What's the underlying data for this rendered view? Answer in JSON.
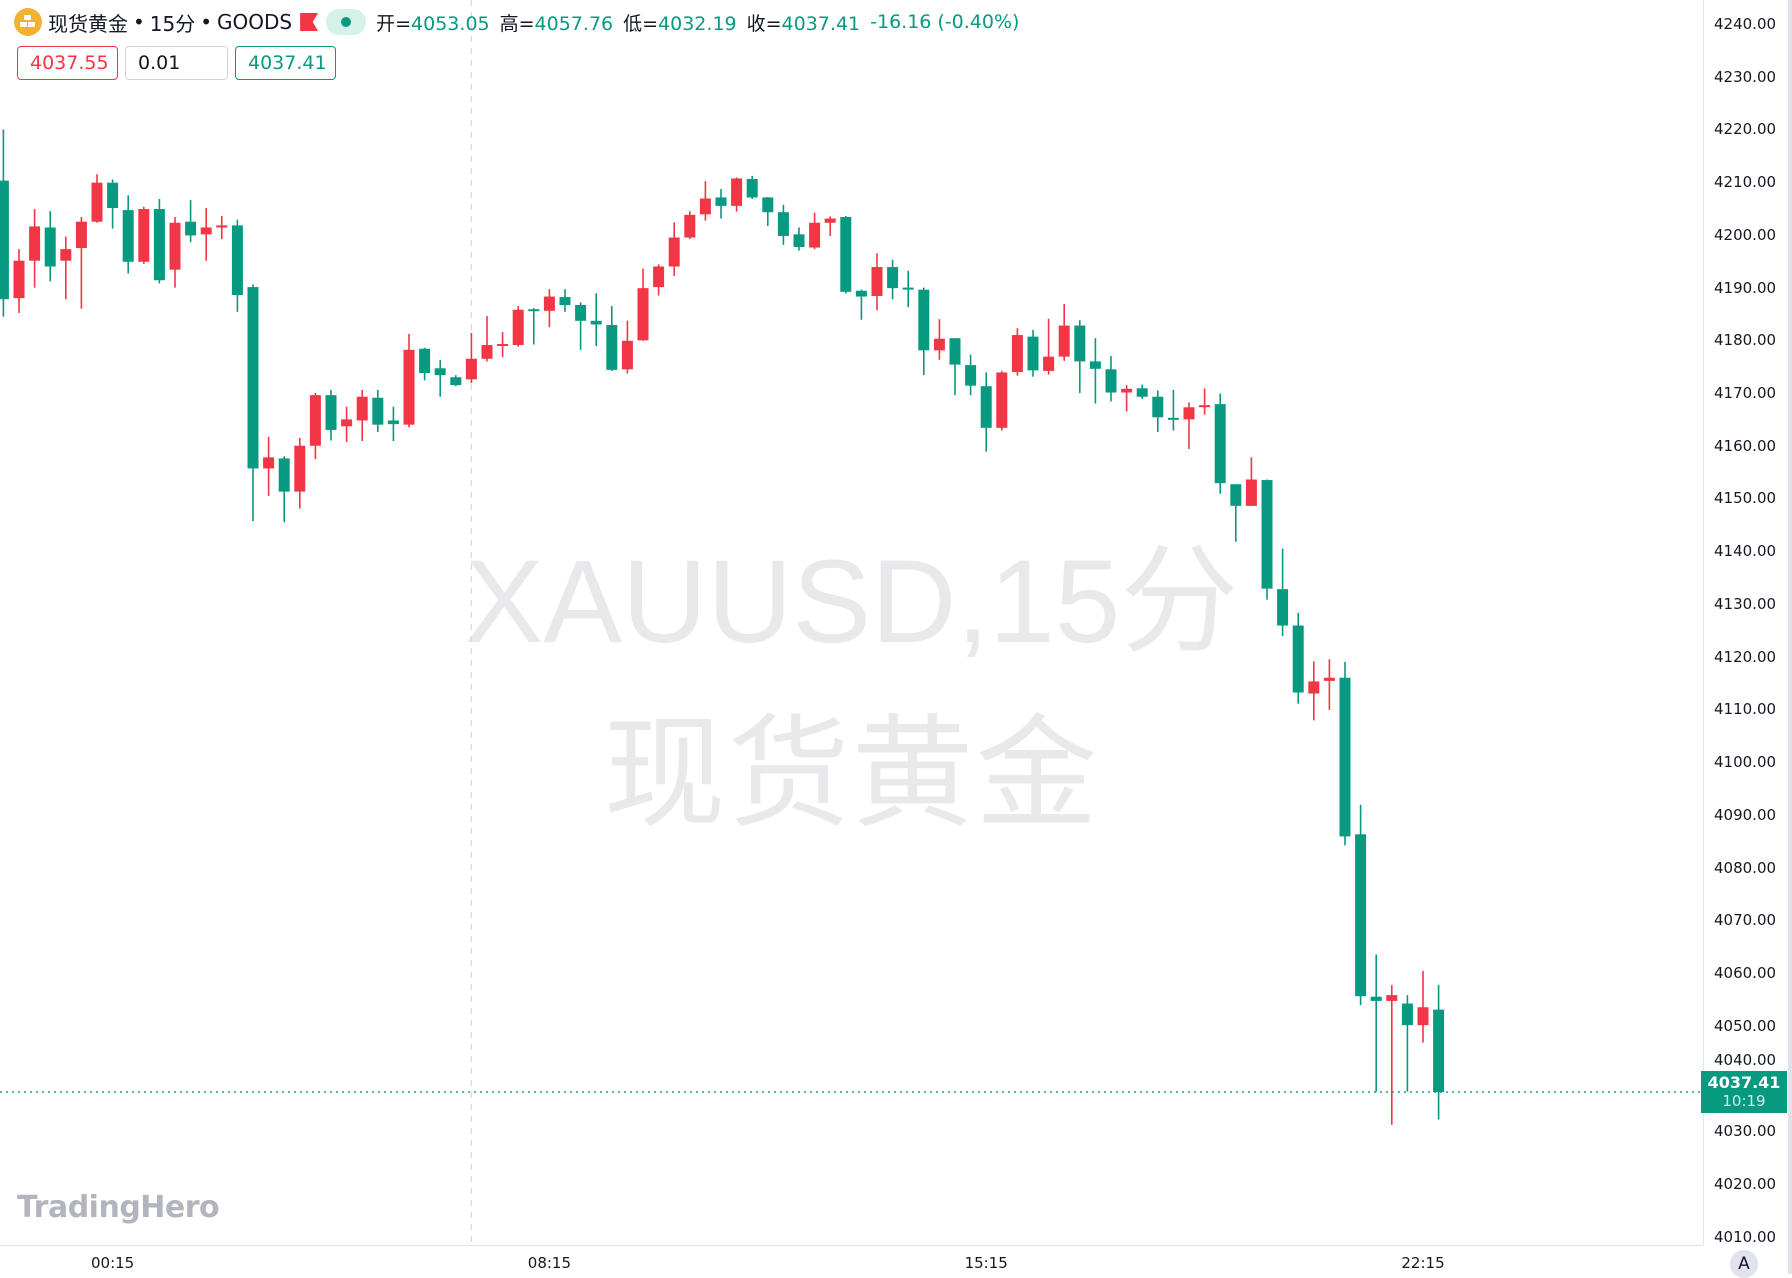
{
  "legend": {
    "symbol_name": "现货黄金",
    "interval": "15分",
    "exchange": "GOODS",
    "separator": "•",
    "open_label": "开=",
    "open": "4053.05",
    "high_label": "高=",
    "high": "4057.76",
    "low_label": "低=",
    "low": "4032.19",
    "close_label": "收=",
    "close": "4037.41",
    "change": "-16.16 (-0.40%)",
    "icons": {
      "symbol": "gold-bars-icon",
      "flag": "flag-icon",
      "status": "market-open-dot-icon"
    }
  },
  "trade_boxes": {
    "sell_price": "4037.55",
    "quantity": "0.01",
    "buy_price": "4037.41"
  },
  "watermark": {
    "line1": "XAUUSD,15分",
    "line2": "现货黄金"
  },
  "logo": "TradingHero",
  "price_axis": {
    "last_price": "4037.41",
    "countdown": "10:19",
    "auto_scale_button": "A"
  },
  "colors": {
    "up": "#f23645",
    "down": "#089981",
    "accent": "#089981"
  },
  "chart_data": {
    "type": "candlestick",
    "ylim": [
      4010,
      4240
    ],
    "y_ticks": [
      "4240.00",
      "4230.00",
      "4220.00",
      "4210.00",
      "4200.00",
      "4190.00",
      "4180.00",
      "4170.00",
      "4160.00",
      "4150.00",
      "4140.00",
      "4130.00",
      "4120.00",
      "4110.00",
      "4100.00",
      "4090.00",
      "4080.00",
      "4070.00",
      "4060.00",
      "4050.00",
      "4040.00",
      "4030.00",
      "4020.00",
      "4010.00"
    ],
    "x_ticks": [
      {
        "label": "00:15",
        "bar": 7
      },
      {
        "label": "08:15",
        "bar": 35
      },
      {
        "label": "15:15",
        "bar": 63
      },
      {
        "label": "22:15",
        "bar": 91
      }
    ],
    "session_break_bar": 30,
    "last_price": 4037.41,
    "ohlc": [
      [
        4210.3,
        4220,
        4184.5,
        4187.8
      ],
      [
        4188,
        4197.3,
        4185.2,
        4195.1
      ],
      [
        4195.1,
        4204.9,
        4190,
        4201.6
      ],
      [
        4201.4,
        4204.5,
        4191.2,
        4194
      ],
      [
        4195.1,
        4199.7,
        4187.8,
        4197.3
      ],
      [
        4197.5,
        4203.4,
        4186,
        4202.5
      ],
      [
        4202.5,
        4211.5,
        4202.3,
        4209.9
      ],
      [
        4209.9,
        4210.5,
        4201.2,
        4205.1
      ],
      [
        4204.7,
        4207.5,
        4192.7,
        4194.9
      ],
      [
        4194.9,
        4205.3,
        4194.5,
        4204.9
      ],
      [
        4204.9,
        4206.8,
        4190.8,
        4191.4
      ],
      [
        4193.4,
        4203.4,
        4190,
        4202.3
      ],
      [
        4202.5,
        4206.6,
        4198.6,
        4199.9
      ],
      [
        4200.1,
        4205.1,
        4195.1,
        4201.4
      ],
      [
        4201.4,
        4203.6,
        4199.2,
        4201.8
      ],
      [
        4201.8,
        4202.9,
        4185.4,
        4188.6
      ],
      [
        4190.1,
        4190.6,
        4145.7,
        4155.7
      ],
      [
        4155.7,
        4161.7,
        4150.5,
        4157.8
      ],
      [
        4157.6,
        4158,
        4145.5,
        4151.3
      ],
      [
        4151.3,
        4161.5,
        4148.1,
        4160
      ],
      [
        4160,
        4170,
        4157.5,
        4169.6
      ],
      [
        4169.6,
        4170.6,
        4161,
        4163
      ],
      [
        4163.7,
        4167.4,
        4160.7,
        4165
      ],
      [
        4164.8,
        4170.6,
        4160.9,
        4169.3
      ],
      [
        4169.1,
        4170.6,
        4162.6,
        4164
      ],
      [
        4164.8,
        4167.4,
        4160.9,
        4164.1
      ],
      [
        4164,
        4181.2,
        4163.5,
        4178.2
      ],
      [
        4178.4,
        4178.6,
        4172.4,
        4173.8
      ],
      [
        4174.7,
        4176.3,
        4169.3,
        4173.4
      ],
      [
        4173,
        4173.4,
        4171.3,
        4171.5
      ],
      [
        4172.6,
        4181.4,
        4171.9,
        4176.5
      ],
      [
        4176.5,
        4184.6,
        4176,
        4179.1
      ],
      [
        4179.1,
        4181.6,
        4176.8,
        4179.3
      ],
      [
        4179.1,
        4186.5,
        4178.8,
        4185.8
      ],
      [
        4185.9,
        4186.1,
        4179.2,
        4185.7
      ],
      [
        4185.6,
        4189.7,
        4182.5,
        4188.3
      ],
      [
        4188.2,
        4189.7,
        4185.4,
        4186.7
      ],
      [
        4186.7,
        4187.2,
        4178.2,
        4183.7
      ],
      [
        4183.7,
        4188.9,
        4178.9,
        4183
      ],
      [
        4182.9,
        4186.5,
        4174.2,
        4174.4
      ],
      [
        4174.5,
        4183.7,
        4173.7,
        4179.9
      ],
      [
        4180,
        4193.6,
        4179.9,
        4189.9
      ],
      [
        4190.1,
        4194.4,
        4188.5,
        4194
      ],
      [
        4194,
        4202.4,
        4192.2,
        4199.5
      ],
      [
        4199.5,
        4204.5,
        4199.2,
        4203.8
      ],
      [
        4203.9,
        4210.2,
        4202.7,
        4206.9
      ],
      [
        4207.1,
        4208.7,
        4203.1,
        4205.5
      ],
      [
        4205.5,
        4210.9,
        4204.4,
        4210.7
      ],
      [
        4210.6,
        4211.2,
        4206.8,
        4207.1
      ],
      [
        4207.1,
        4207.2,
        4201.7,
        4204.3
      ],
      [
        4204.3,
        4205.7,
        4198.1,
        4199.8
      ],
      [
        4200.1,
        4201.4,
        4197,
        4197.7
      ],
      [
        4197.6,
        4204.2,
        4197.3,
        4202.3
      ],
      [
        4202.3,
        4203.5,
        4199.8,
        4203.1
      ],
      [
        4203.4,
        4203.6,
        4188.9,
        4189.2
      ],
      [
        4189.4,
        4189.6,
        4183.9,
        4188.3
      ],
      [
        4188.4,
        4196.5,
        4185.7,
        4193.9
      ],
      [
        4193.9,
        4195.3,
        4187.8,
        4189.9
      ],
      [
        4190,
        4193.2,
        4186.3,
        4189.8
      ],
      [
        4189.6,
        4190,
        4173.4,
        4178.1
      ],
      [
        4178.1,
        4184,
        4176.3,
        4180.3
      ],
      [
        4180.4,
        4180.4,
        4169.6,
        4175.4
      ],
      [
        4175.3,
        4177.3,
        4169.6,
        4171.4
      ],
      [
        4171.3,
        4173.9,
        4158.9,
        4163.4
      ],
      [
        4163.4,
        4174.2,
        4162.9,
        4173.9
      ],
      [
        4174,
        4182.3,
        4173.3,
        4181
      ],
      [
        4180.7,
        4182,
        4173.1,
        4174.3
      ],
      [
        4174.2,
        4184.1,
        4173.5,
        4176.9
      ],
      [
        4176.9,
        4186.9,
        4176.1,
        4182.8
      ],
      [
        4182.8,
        4183.8,
        4170,
        4176
      ],
      [
        4176,
        4180.4,
        4168,
        4174.6
      ],
      [
        4174.5,
        4177,
        4168.4,
        4170.1
      ],
      [
        4170.1,
        4171.5,
        4166.5,
        4170.8
      ],
      [
        4170.9,
        4171.6,
        4168.9,
        4169.3
      ],
      [
        4169.3,
        4170.5,
        4162.6,
        4165.4
      ],
      [
        4165.3,
        4170.6,
        4162.9,
        4165.1
      ],
      [
        4165,
        4168.2,
        4159.4,
        4167.3
      ],
      [
        4167.5,
        4170.9,
        4165.9,
        4167.7
      ],
      [
        4167.9,
        4169.9,
        4150.9,
        4152.9
      ],
      [
        4152.7,
        4152.7,
        4141.8,
        4148.6
      ],
      [
        4148.6,
        4157.8,
        4148.6,
        4153.6
      ],
      [
        4153.5,
        4153.6,
        4130.8,
        4132.9
      ],
      [
        4132.8,
        4140.5,
        4123.9,
        4125.9
      ],
      [
        4125.9,
        4128.3,
        4111.1,
        4113.2
      ],
      [
        4113,
        4119.1,
        4107.9,
        4115.3
      ],
      [
        4115.4,
        4119.5,
        4109.9,
        4116
      ],
      [
        4116,
        4119,
        4084.2,
        4085.9
      ],
      [
        4086.3,
        4091.9,
        4053.9,
        4055.6
      ],
      [
        4055.5,
        4063.5,
        4037.5,
        4054.7
      ],
      [
        4054.7,
        4057.7,
        4031.2,
        4055.8
      ],
      [
        4054.2,
        4055.8,
        4037.5,
        4050.1
      ],
      [
        4050.1,
        4060.4,
        4046.8,
        4053.5
      ],
      [
        4053.05,
        4057.76,
        4032.19,
        4037.41
      ]
    ]
  }
}
